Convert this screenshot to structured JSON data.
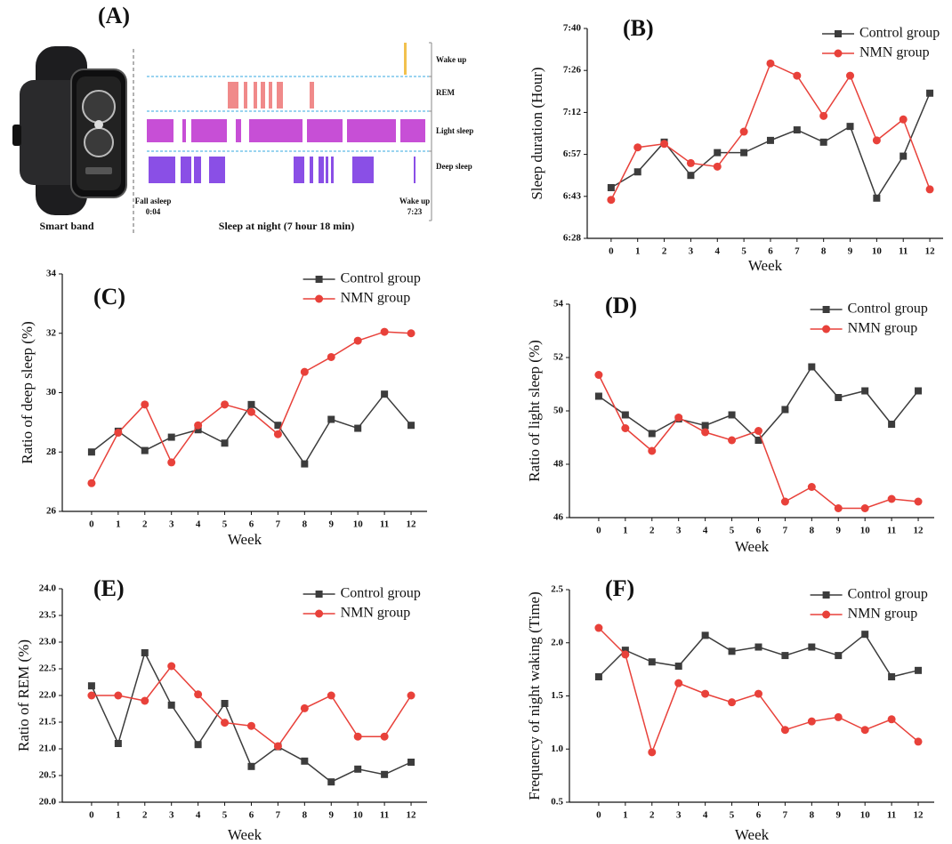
{
  "panel_a": {
    "label": "(A)",
    "device": "Smart band",
    "caption": "Sleep at night (7 hour 18 min)",
    "stages": [
      "Wake up",
      "REM",
      "Light sleep",
      "Deep sleep"
    ],
    "start_label": "Fall asleep",
    "start_time": "0:04",
    "end_label": "Wake up",
    "end_time": "7:23"
  },
  "chart_data": [
    {
      "type": "line",
      "panel_label": "(B)",
      "y_label": "Sleep duration (Hour)",
      "x_label": "Week",
      "x": [
        0,
        1,
        2,
        3,
        4,
        5,
        6,
        7,
        8,
        9,
        10,
        11,
        12
      ],
      "xlim": [
        -0.9,
        12.5
      ],
      "xticks": [
        0,
        1,
        2,
        3,
        4,
        5,
        6,
        7,
        8,
        9,
        10,
        11,
        12
      ],
      "ylim": [
        6.48,
        7.68
      ],
      "yticks": [
        {
          "value": 6.48,
          "label": "6:28"
        },
        {
          "value": 6.72,
          "label": "6:43"
        },
        {
          "value": 6.96,
          "label": "6:57"
        },
        {
          "value": 7.2,
          "label": "7:12"
        },
        {
          "value": 7.44,
          "label": "7:26"
        },
        {
          "value": 7.68,
          "label": "7:40"
        }
      ],
      "legend": "top-right",
      "series": [
        {
          "name": "Control group",
          "color": "#3c3c3c",
          "marker": "square",
          "values": [
            6.77,
            6.86,
            7.03,
            6.84,
            6.97,
            6.97,
            7.04,
            7.1,
            7.03,
            7.12,
            6.71,
            6.95,
            7.31
          ]
        },
        {
          "name": "NMN group",
          "color": "#e8413a",
          "marker": "circle",
          "values": [
            6.7,
            7.0,
            7.02,
            6.91,
            6.89,
            7.09,
            7.48,
            7.41,
            7.18,
            7.41,
            7.04,
            7.16,
            6.76
          ]
        }
      ]
    },
    {
      "type": "line",
      "panel_label": "(C)",
      "y_label": "Ratio of deep sleep (%)",
      "x_label": "Week",
      "x": [
        0,
        1,
        2,
        3,
        4,
        5,
        6,
        7,
        8,
        9,
        10,
        11,
        12
      ],
      "xlim": [
        -1.1,
        12.6
      ],
      "xticks": [
        0,
        1,
        2,
        3,
        4,
        5,
        6,
        7,
        8,
        9,
        10,
        11,
        12
      ],
      "ylim": [
        26,
        34
      ],
      "yticks": [
        26,
        28,
        30,
        32,
        34
      ],
      "legend": "top-right",
      "series": [
        {
          "name": "Control group",
          "color": "#3c3c3c",
          "marker": "square",
          "values": [
            28.0,
            28.7,
            28.05,
            28.5,
            28.75,
            28.3,
            29.6,
            28.9,
            27.6,
            29.1,
            28.8,
            29.95,
            28.9
          ]
        },
        {
          "name": "NMN group",
          "color": "#e8413a",
          "marker": "circle",
          "values": [
            26.95,
            28.65,
            29.6,
            27.65,
            28.9,
            29.6,
            29.35,
            28.6,
            30.7,
            31.2,
            31.75,
            32.05,
            32.0
          ]
        }
      ]
    },
    {
      "type": "line",
      "panel_label": "(D)",
      "y_label": "Ratio of light sleep (%)",
      "x_label": "Week",
      "x": [
        0,
        1,
        2,
        3,
        4,
        5,
        6,
        7,
        8,
        9,
        10,
        11,
        12
      ],
      "xlim": [
        -1.1,
        12.6
      ],
      "xticks": [
        0,
        1,
        2,
        3,
        4,
        5,
        6,
        7,
        8,
        9,
        10,
        11,
        12
      ],
      "ylim": [
        46,
        54
      ],
      "yticks": [
        46,
        48,
        50,
        52,
        54
      ],
      "legend": "top-right",
      "series": [
        {
          "name": "Control group",
          "color": "#3c3c3c",
          "marker": "square",
          "values": [
            50.55,
            49.85,
            49.15,
            49.7,
            49.45,
            49.85,
            48.9,
            50.05,
            51.65,
            50.5,
            50.75,
            49.5,
            50.75
          ]
        },
        {
          "name": "NMN group",
          "color": "#e8413a",
          "marker": "circle",
          "values": [
            51.35,
            49.35,
            48.5,
            49.75,
            49.2,
            48.9,
            49.25,
            46.6,
            47.15,
            46.35,
            46.35,
            46.7,
            46.6
          ]
        }
      ]
    },
    {
      "type": "line",
      "panel_label": "(E)",
      "y_label": "Ratio of REM (%)",
      "x_label": "Week",
      "x": [
        0,
        1,
        2,
        3,
        4,
        5,
        6,
        7,
        8,
        9,
        10,
        11,
        12
      ],
      "xlim": [
        -1.1,
        12.6
      ],
      "xticks": [
        0,
        1,
        2,
        3,
        4,
        5,
        6,
        7,
        8,
        9,
        10,
        11,
        12
      ],
      "ylim": [
        20,
        24
      ],
      "yticks": [
        {
          "value": 20,
          "label": "20.0"
        },
        20.5,
        {
          "value": 21,
          "label": "21.0"
        },
        21.5,
        {
          "value": 22,
          "label": "22.0"
        },
        22.5,
        {
          "value": 23,
          "label": "23.0"
        },
        23.5,
        {
          "value": 24,
          "label": "24.0"
        }
      ],
      "legend": "top-right",
      "series": [
        {
          "name": "Control group",
          "color": "#3c3c3c",
          "marker": "square",
          "values": [
            22.18,
            21.1,
            22.8,
            21.82,
            21.08,
            21.85,
            20.67,
            21.04,
            20.77,
            20.38,
            20.62,
            20.52,
            20.75
          ]
        },
        {
          "name": "NMN group",
          "color": "#e8413a",
          "marker": "circle",
          "values": [
            22.0,
            22.0,
            21.9,
            22.55,
            22.02,
            21.49,
            21.43,
            21.05,
            21.76,
            22.0,
            21.23,
            21.23,
            22.0
          ]
        }
      ]
    },
    {
      "type": "line",
      "panel_label": "(F)",
      "y_label": "Frequency  of night waking (Time)",
      "x_label": "Week",
      "x": [
        0,
        1,
        2,
        3,
        4,
        5,
        6,
        7,
        8,
        9,
        10,
        11,
        12
      ],
      "xlim": [
        -1.1,
        12.6
      ],
      "xticks": [
        0,
        1,
        2,
        3,
        4,
        5,
        6,
        7,
        8,
        9,
        10,
        11,
        12
      ],
      "ylim": [
        0.5,
        2.5
      ],
      "yticks": [
        0.5,
        {
          "value": 1,
          "label": "1.0"
        },
        1.5,
        {
          "value": 2,
          "label": "2.0"
        },
        2.5
      ],
      "legend": "top-right",
      "series": [
        {
          "name": "Control group",
          "color": "#3c3c3c",
          "marker": "square",
          "values": [
            1.68,
            1.93,
            1.82,
            1.78,
            2.07,
            1.92,
            1.96,
            1.88,
            1.96,
            1.88,
            2.08,
            1.68,
            1.74
          ]
        },
        {
          "name": "NMN group",
          "color": "#e8413a",
          "marker": "circle",
          "values": [
            2.14,
            1.89,
            0.97,
            1.62,
            1.52,
            1.44,
            1.52,
            1.18,
            1.26,
            1.3,
            1.18,
            1.28,
            1.07
          ]
        }
      ]
    }
  ]
}
